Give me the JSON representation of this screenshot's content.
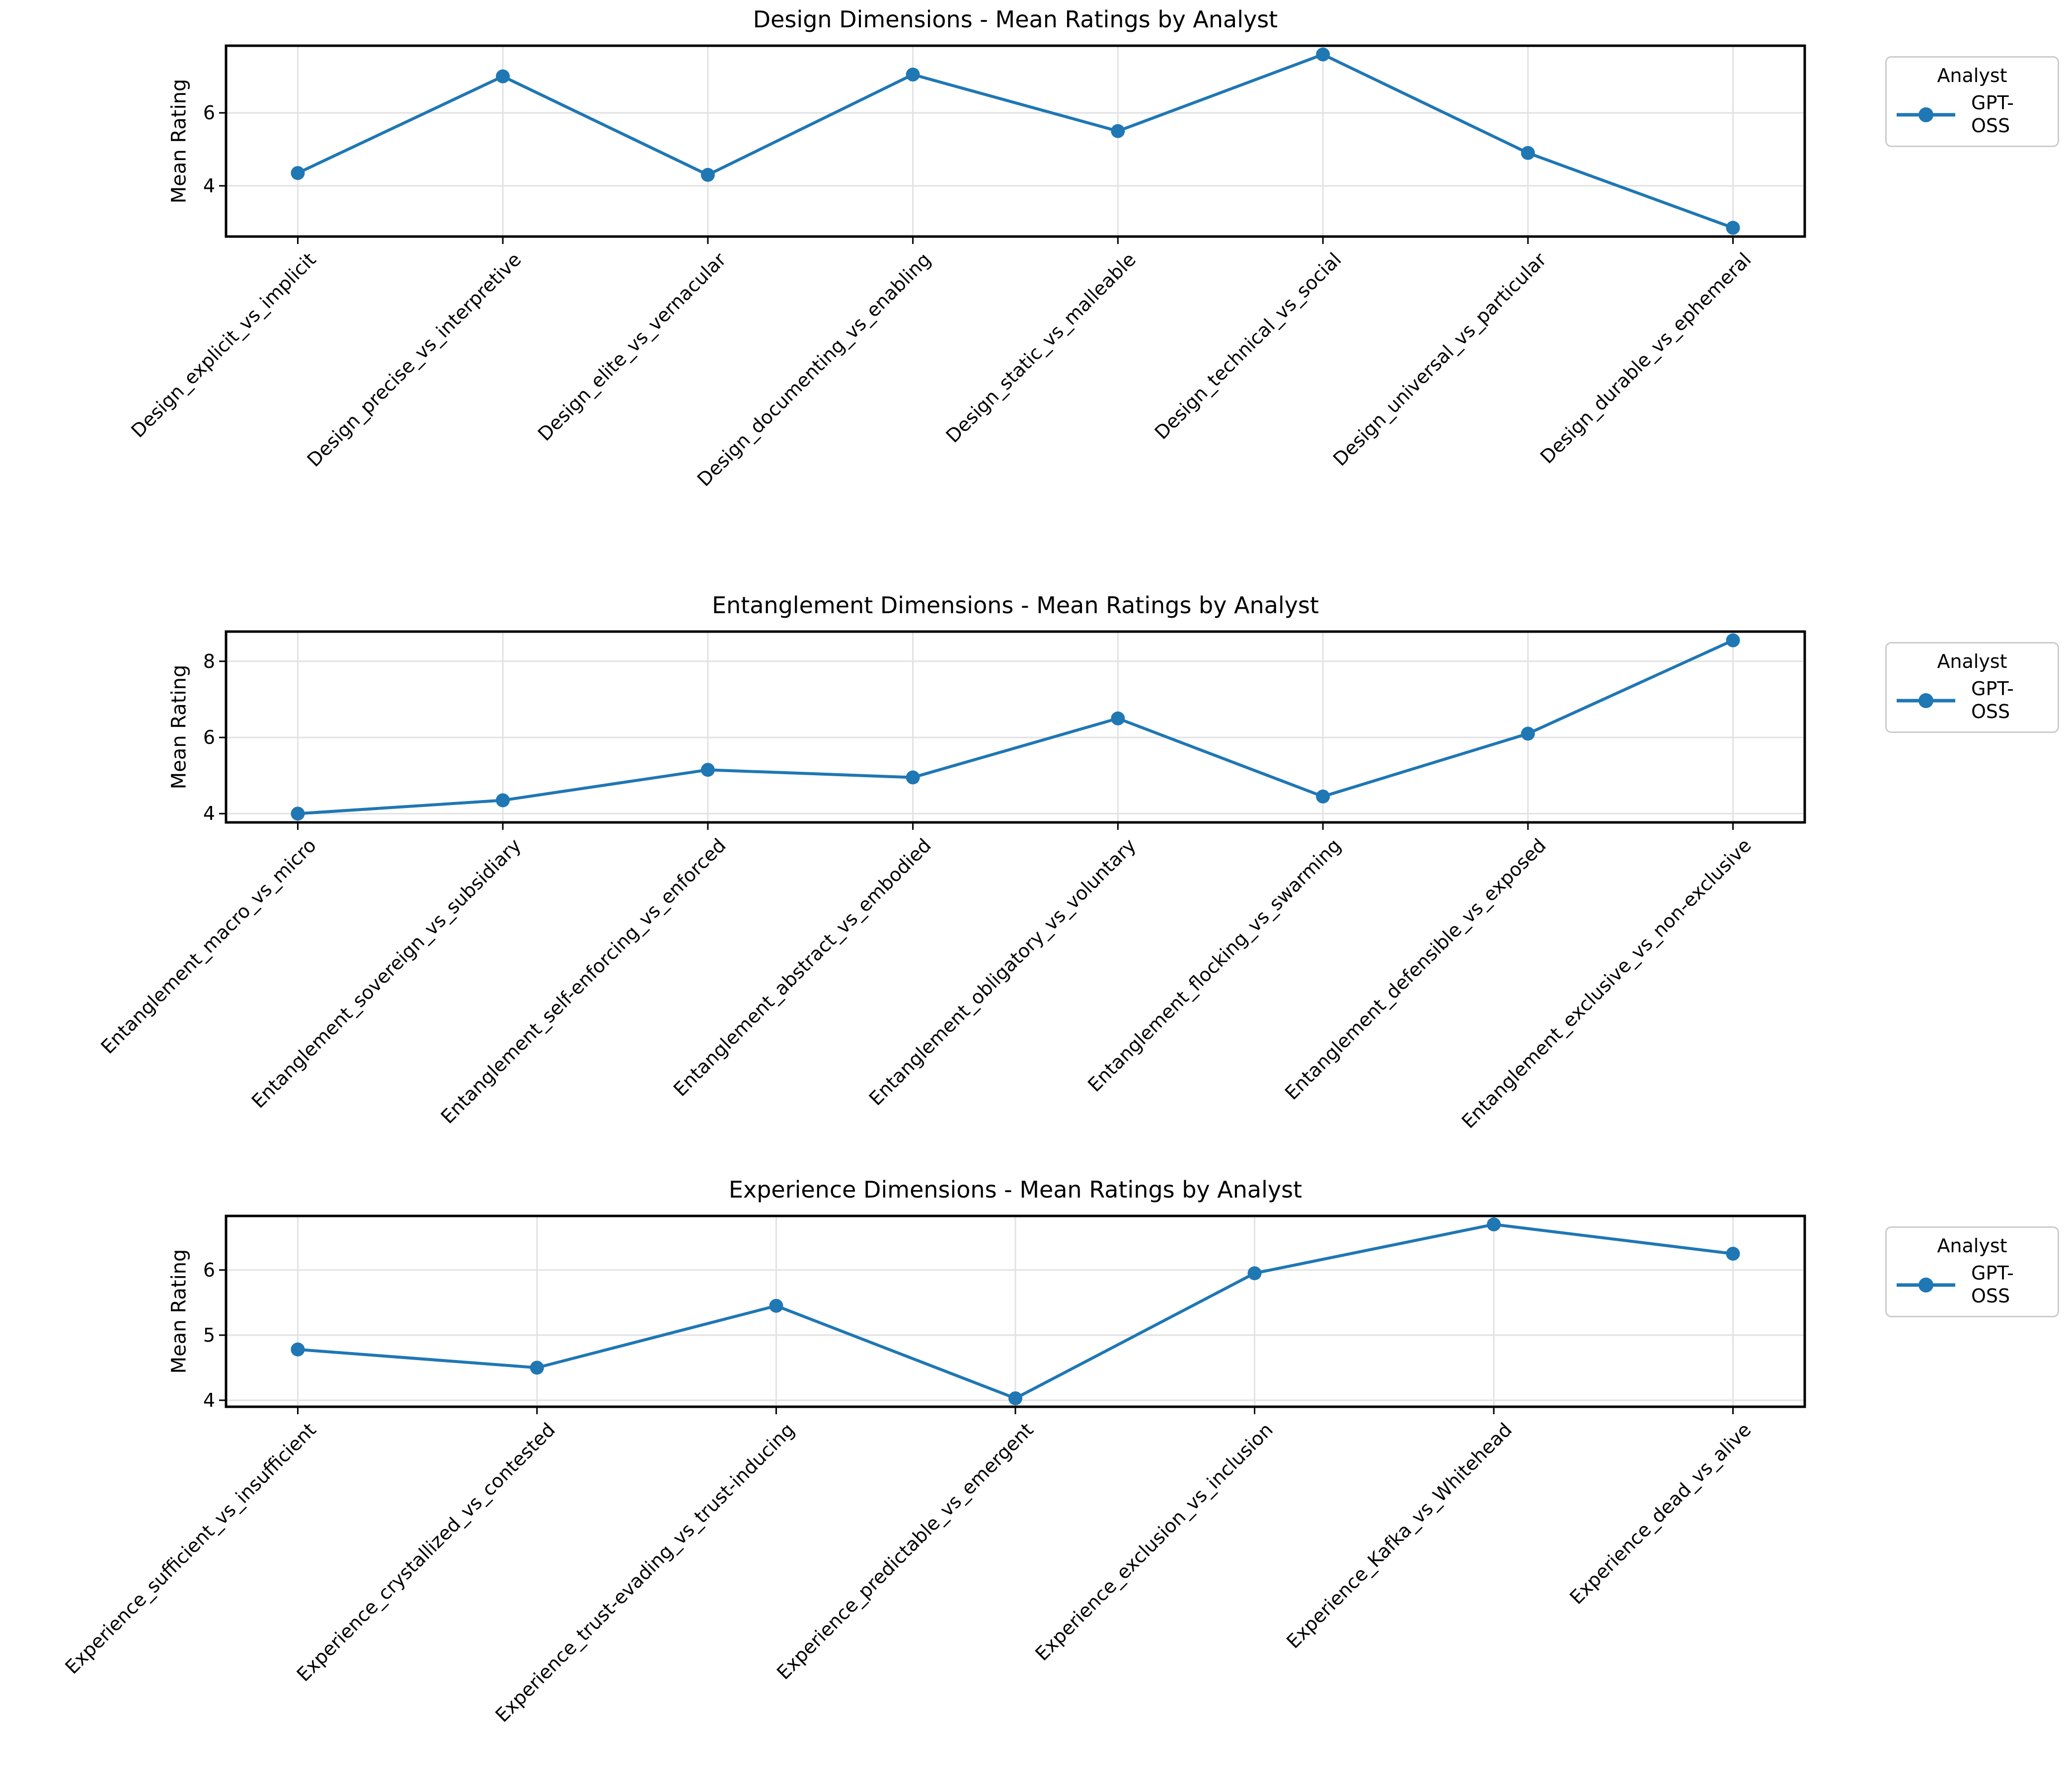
{
  "figure": {
    "background": "#ffffff"
  },
  "legend": {
    "title": "Analyst",
    "series_label": "GPT-OSS"
  },
  "style": {
    "series_color": "#1f77b4",
    "grid_color": "#e2e2e2",
    "spine_color": "#000000",
    "tick_color": "#000000",
    "text_color": "#000000",
    "legend_border_color": "#cccccc"
  },
  "chart_data": [
    {
      "type": "line",
      "title": "Design Dimensions - Mean Ratings by Analyst",
      "xlabel": "",
      "ylabel": "Mean Rating",
      "legend_title": "Analyst",
      "legend_position": "outside upper right",
      "grid": true,
      "marker": "o",
      "categories": [
        "Design_explicit_vs_implicit",
        "Design_precise_vs_interpretive",
        "Design_elite_vs_vernacular",
        "Design_documenting_vs_enabling",
        "Design_static_vs_malleable",
        "Design_technical_vs_social",
        "Design_universal_vs_particular",
        "Design_durable_vs_ephemeral"
      ],
      "series": [
        {
          "name": "GPT-OSS",
          "values": [
            4.35,
            7.0,
            4.3,
            7.05,
            5.5,
            7.6,
            4.9,
            2.85
          ]
        }
      ],
      "yticks": [
        4,
        6
      ],
      "ylim": [
        2.61,
        7.84
      ]
    },
    {
      "type": "line",
      "title": "Entanglement Dimensions - Mean Ratings by Analyst",
      "xlabel": "",
      "ylabel": "Mean Rating",
      "legend_title": "Analyst",
      "legend_position": "outside upper right",
      "grid": true,
      "marker": "o",
      "categories": [
        "Entanglement_macro_vs_micro",
        "Entanglement_sovereign_vs_subsidiary",
        "Entanglement_self-enforcing_vs_enforced",
        "Entanglement_abstract_vs_embodied",
        "Entanglement_obligatory_vs_voluntary",
        "Entanglement_flocking_vs_swarming",
        "Entanglement_defensible_vs_exposed",
        "Entanglement_exclusive_vs_non-exclusive"
      ],
      "series": [
        {
          "name": "GPT-OSS",
          "values": [
            4.0,
            4.35,
            5.15,
            4.95,
            6.5,
            4.45,
            6.1,
            8.55
          ]
        }
      ],
      "yticks": [
        4,
        6,
        8
      ],
      "ylim": [
        3.77,
        8.78
      ]
    },
    {
      "type": "line",
      "title": "Experience Dimensions - Mean Ratings by Analyst",
      "xlabel": "",
      "ylabel": "Mean Rating",
      "legend_title": "Analyst",
      "legend_position": "outside upper right",
      "grid": true,
      "marker": "o",
      "categories": [
        "Experience_sufficient_vs_insufficient",
        "Experience_crystallized_vs_contested",
        "Experience_trust-evading_vs_trust-inducing",
        "Experience_predictable_vs_emergent",
        "Experience_exclusion_vs_inclusion",
        "Experience_Kafka_vs_Whitehead",
        "Experience_dead_vs_alive"
      ],
      "series": [
        {
          "name": "GPT-OSS",
          "values": [
            4.78,
            4.5,
            5.45,
            4.03,
            5.95,
            6.7,
            6.25
          ]
        }
      ],
      "yticks": [
        4,
        5,
        6
      ],
      "ylim": [
        3.9,
        6.83
      ]
    }
  ]
}
